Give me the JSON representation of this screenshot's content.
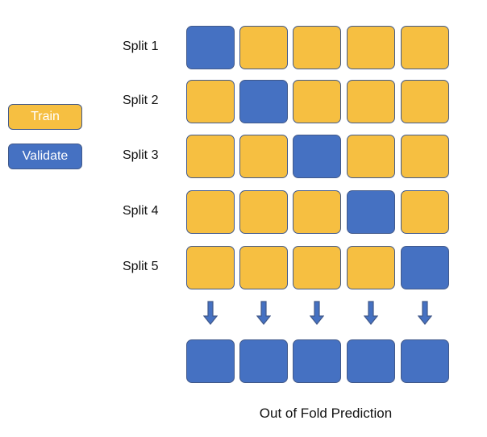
{
  "colors": {
    "train": "#f6bf41",
    "validate": "#4571c2",
    "border": "#41598a"
  },
  "legend": {
    "train_label": "Train",
    "validate_label": "Validate"
  },
  "splits": [
    {
      "label": "Split 1",
      "validate_index": 0
    },
    {
      "label": "Split 2",
      "validate_index": 1
    },
    {
      "label": "Split 3",
      "validate_index": 2
    },
    {
      "label": "Split 4",
      "validate_index": 3
    },
    {
      "label": "Split 5",
      "validate_index": 4
    }
  ],
  "folds": 5,
  "arrow_icon": "down-arrow-icon",
  "footer": {
    "label": "Out of Fold Prediction"
  }
}
